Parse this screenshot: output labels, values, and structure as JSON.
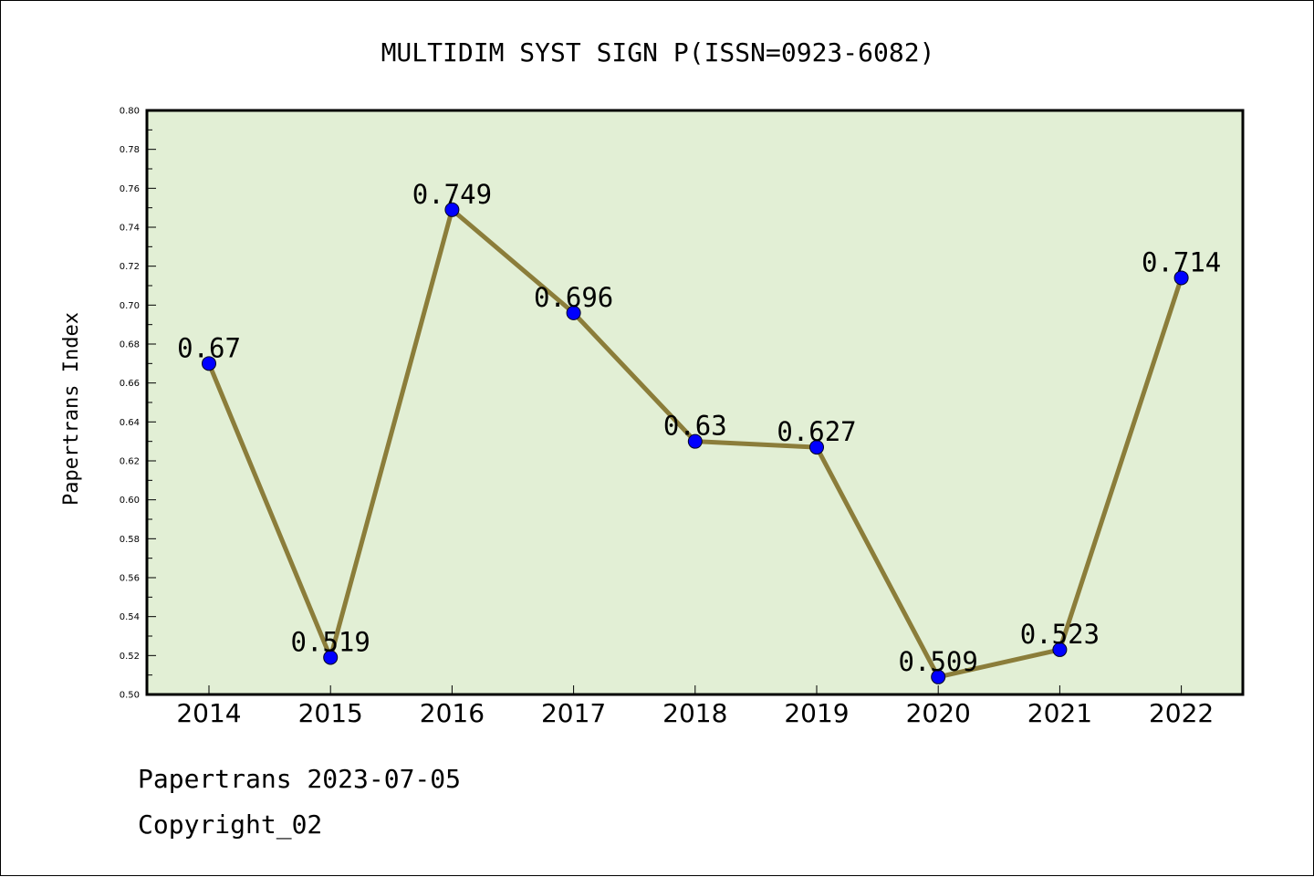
{
  "chart_data": {
    "type": "line",
    "title": "MULTIDIM SYST SIGN P(ISSN=0923-6082)",
    "xlabel": "",
    "ylabel": "Papertrans Index",
    "categories": [
      "2014",
      "2015",
      "2016",
      "2017",
      "2018",
      "2019",
      "2020",
      "2021",
      "2022"
    ],
    "series": [
      {
        "values": [
          0.67,
          0.519,
          0.749,
          0.696,
          0.63,
          0.627,
          0.509,
          0.523,
          0.714
        ],
        "data_labels": [
          "0.67",
          "0.519",
          "0.749",
          "0.696",
          "0.63",
          "0.627",
          "0.509",
          "0.523",
          "0.714"
        ]
      }
    ],
    "ylim": [
      0.5,
      0.8
    ],
    "yticks": [
      "0.50",
      "0.52",
      "0.54",
      "0.56",
      "0.58",
      "0.60",
      "0.62",
      "0.64",
      "0.66",
      "0.68",
      "0.70",
      "0.72",
      "0.74",
      "0.76",
      "0.78",
      "0.80"
    ],
    "grid": false,
    "legend": "none",
    "colors": {
      "plot_background": "#e2efd5",
      "line": "#8b7d3a",
      "marker": "#0000ff"
    }
  },
  "footer": {
    "line1": "Papertrans 2023-07-05",
    "line2": "Copyright_02"
  }
}
